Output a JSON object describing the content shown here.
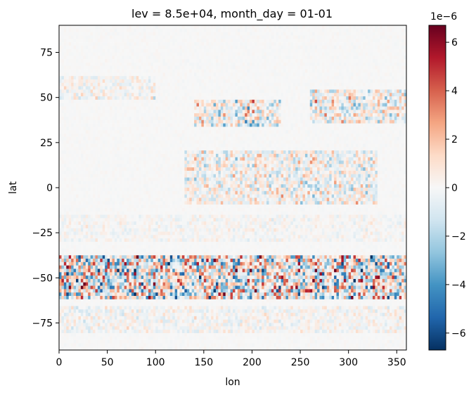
{
  "chart_data": {
    "type": "heatmap",
    "title": "lev = 8.5e+04, month_day = 01-01",
    "xlabel": "lon",
    "ylabel": "lat",
    "xlim": [
      0,
      360
    ],
    "ylim": [
      -90,
      90
    ],
    "x_ticks": [
      0,
      50,
      100,
      150,
      200,
      250,
      300,
      350
    ],
    "x_tick_labels": [
      "0",
      "50",
      "100",
      "150",
      "200",
      "250",
      "300",
      "350"
    ],
    "y_ticks": [
      75,
      50,
      25,
      0,
      -25,
      -50,
      -75
    ],
    "y_tick_labels": [
      "75",
      "50",
      "25",
      "0",
      "−25",
      "−50",
      "−75"
    ],
    "colorbar": {
      "colormap": "RdBu_r",
      "vmin": -6.7e-06,
      "vmax": 6.7e-06,
      "scale_label": "1e−6",
      "ticks": [
        6,
        4,
        2,
        0,
        -2,
        -4,
        -6
      ],
      "tick_labels": [
        "6",
        "4",
        "2",
        "0",
        "−2",
        "−4",
        "−6"
      ],
      "position": "right"
    },
    "grid": false,
    "grid_resolution": {
      "nlon": 144,
      "nlat": 96
    },
    "bands": [
      {
        "lat_min": -62,
        "lat_max": -38,
        "lon_min": 0,
        "lon_max": 360,
        "amplitude": 5.2e-06
      },
      {
        "lat_min": 33,
        "lat_max": 48,
        "lon_min": 140,
        "lon_max": 230,
        "amplitude": 3.2e-06
      },
      {
        "lat_min": 35,
        "lat_max": 55,
        "lon_min": 260,
        "lon_max": 360,
        "amplitude": 2.8e-06
      },
      {
        "lat_min": -10,
        "lat_max": 20,
        "lon_min": 130,
        "lon_max": 330,
        "amplitude": 2.2e-06
      },
      {
        "lat_min": 48,
        "lat_max": 62,
        "lon_min": 0,
        "lon_max": 100,
        "amplitude": 1.3e-06
      },
      {
        "lat_min": -80,
        "lat_max": -65,
        "lon_min": 0,
        "lon_max": 360,
        "amplitude": 1.1e-06
      },
      {
        "lat_min": -30,
        "lat_max": -15,
        "lon_min": 0,
        "lon_max": 360,
        "amplitude": 7e-07
      },
      {
        "lat_min": -90,
        "lat_max": 90,
        "lon_min": 0,
        "lon_max": 360,
        "amplitude": 1.5e-07
      }
    ]
  }
}
